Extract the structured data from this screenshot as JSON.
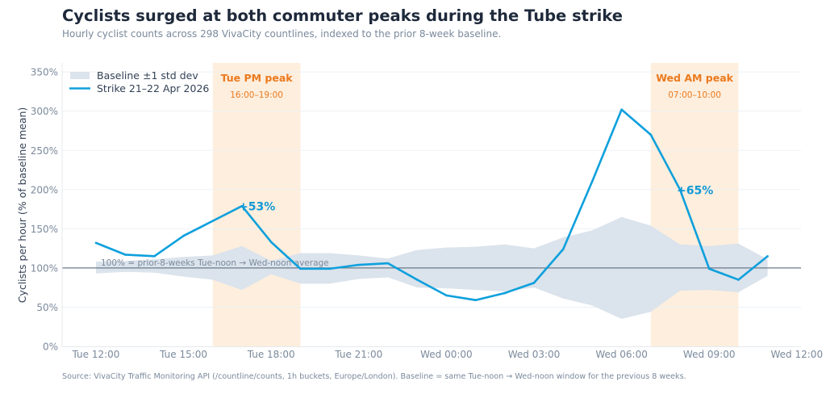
{
  "header": {
    "title": "Cyclists surged at both commuter peaks during the Tube strike",
    "subtitle": "Hourly cyclist counts across 298 VivaCity countlines, indexed to the prior 8-week baseline."
  },
  "footer": {
    "source": "Source: VivaCity Traffic Monitoring API (/countline/counts, 1h buckets, Europe/London). Baseline = same Tue-noon → Wed-noon window for the previous 8 weeks."
  },
  "colors": {
    "strike_line": "#0ea0dc",
    "band": "#dbe3ec",
    "peak_shade": "#fdeedd",
    "peak_text": "#ea7a1f",
    "reference_line": "#6b7a8a",
    "grid": "#edf1f5"
  },
  "chart_data": {
    "type": "line",
    "title": "Cyclists surged at both commuter peaks during the Tube strike",
    "subtitle": "Hourly cyclist counts across 298 VivaCity countlines, indexed to the prior 8-week baseline.",
    "xlabel": "",
    "ylabel": "Cyclists per hour (% of baseline mean)",
    "ylim": [
      0,
      360
    ],
    "xlim_hours_from_tue_noon": [
      -1.2,
      24.5
    ],
    "grid": true,
    "legend_position": "top-left",
    "yticks": [
      0,
      50,
      100,
      150,
      200,
      250,
      300,
      350
    ],
    "ytick_labels": [
      "0%",
      "50%",
      "100%",
      "150%",
      "200%",
      "250%",
      "300%",
      "350%"
    ],
    "xticks_hours": [
      0,
      3,
      6,
      9,
      12,
      15,
      18,
      21,
      24
    ],
    "xtick_labels": [
      "Tue 12:00",
      "Tue 15:00",
      "Tue 18:00",
      "Tue 21:00",
      "Wed 00:00",
      "Wed 03:00",
      "Wed 06:00",
      "Wed 09:00",
      "Wed 12:00"
    ],
    "x_hours": [
      0,
      1,
      2,
      3,
      4,
      5,
      6,
      7,
      8,
      9,
      10,
      11,
      12,
      13,
      14,
      15,
      16,
      17,
      18,
      19,
      20,
      21,
      22,
      23
    ],
    "x": [
      "Tue 12:00",
      "Tue 13:00",
      "Tue 14:00",
      "Tue 15:00",
      "Tue 16:00",
      "Tue 17:00",
      "Tue 18:00",
      "Tue 19:00",
      "Tue 20:00",
      "Tue 21:00",
      "Tue 22:00",
      "Tue 23:00",
      "Wed 00:00",
      "Wed 01:00",
      "Wed 02:00",
      "Wed 03:00",
      "Wed 04:00",
      "Wed 05:00",
      "Wed 06:00",
      "Wed 07:00",
      "Wed 08:00",
      "Wed 09:00",
      "Wed 10:00",
      "Wed 11:00"
    ],
    "series": [
      {
        "name": "Strike 21–22 Apr 2026",
        "type": "line",
        "values": [
          132,
          117,
          115,
          141,
          160,
          179,
          133,
          99,
          99,
          104,
          106,
          85,
          65,
          59,
          68,
          81,
          124,
          211,
          302,
          270,
          200,
          99,
          85,
          115
        ]
      },
      {
        "name": "Baseline ±1 std dev",
        "type": "band",
        "upper": [
          108,
          109,
          111,
          114,
          116,
          128,
          109,
          119,
          119,
          116,
          112,
          123,
          126,
          127,
          130,
          125,
          139,
          148,
          165,
          154,
          130,
          128,
          131,
          111
        ],
        "lower": [
          93,
          95,
          94,
          89,
          85,
          72,
          92,
          80,
          80,
          86,
          88,
          75,
          74,
          72,
          70,
          75,
          61,
          52,
          35,
          44,
          71,
          72,
          69,
          90
        ]
      }
    ],
    "reference_line": {
      "y": 100,
      "label": "100% = prior-8-weeks Tue-noon → Wed-noon average"
    },
    "shaded_regions": [
      {
        "title": "Tue PM peak",
        "subtitle": "16:00–19:00",
        "start_hour": 4,
        "end_hour": 7
      },
      {
        "title": "Wed AM peak",
        "subtitle": "07:00–10:00",
        "start_hour": 19,
        "end_hour": 22
      }
    ],
    "annotations": [
      {
        "text": "+53%",
        "x_hour": 5,
        "y": 179
      },
      {
        "text": "+65%",
        "x_hour": 20,
        "y": 200
      }
    ]
  }
}
